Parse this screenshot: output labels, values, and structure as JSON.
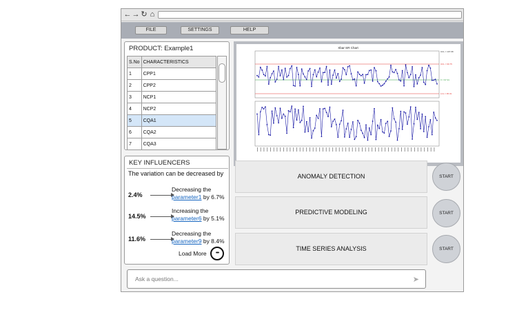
{
  "browser": {
    "nav_icons": [
      "back-icon",
      "forward-icon",
      "reload-icon",
      "home-icon"
    ],
    "back_glyph": "←",
    "forward_glyph": "→",
    "reload_glyph": "↻",
    "home_glyph": "⌂"
  },
  "menu": {
    "items": [
      {
        "label": "FILE"
      },
      {
        "label": "SETTINGS"
      },
      {
        "label": "HELP"
      }
    ]
  },
  "product": {
    "title": "PRODUCT: Example1",
    "columns": [
      "S.No",
      "CHARACTERISTICS"
    ],
    "rows": [
      {
        "sno": "1",
        "name": "CPP1"
      },
      {
        "sno": "2",
        "name": "CPP2"
      },
      {
        "sno": "3",
        "name": "NCP1"
      },
      {
        "sno": "4",
        "name": "NCP2"
      },
      {
        "sno": "5",
        "name": "CQA1"
      },
      {
        "sno": "6",
        "name": "CQA2"
      },
      {
        "sno": "7",
        "name": "CQA3"
      }
    ],
    "selected_row": 4
  },
  "chart": {
    "title": "Xbar-SR Chart",
    "ucl_label": "UCL = 99.75",
    "mean_label": "X = 97.31",
    "lcl_label": "LCL = 95.01",
    "right_top_label": "UCL = 107.98",
    "upper_series_color": "#1a1aa6",
    "ucl_color": "#e53935",
    "mean_color": "#2e9d3a",
    "lower_series_color": "#1a1aa6"
  },
  "key_influencers": {
    "title": "KEY INFLUENCERS",
    "subtitle": "The variation can be decreased by",
    "items": [
      {
        "pct": "2.4%",
        "verb": "Decreasing the",
        "param": "parameter1",
        "by": "by 6.7%"
      },
      {
        "pct": "14.5%",
        "verb": "Increasing the",
        "param": "parameter6",
        "by": "by 5.1%"
      },
      {
        "pct": "11.6%",
        "verb": "Decreasing the",
        "param": "parameter9",
        "by": "by 8.4%"
      }
    ],
    "load_more": "Load More",
    "more_glyph": "•••"
  },
  "actions": [
    {
      "label": "ANOMALY DETECTION",
      "button": "START"
    },
    {
      "label": "PREDICTIVE MODELING",
      "button": "START"
    },
    {
      "label": "TIME SERIES ANALYSIS",
      "button": "START"
    }
  ],
  "ask": {
    "placeholder": "Ask a question...",
    "send_glyph": "➤"
  }
}
